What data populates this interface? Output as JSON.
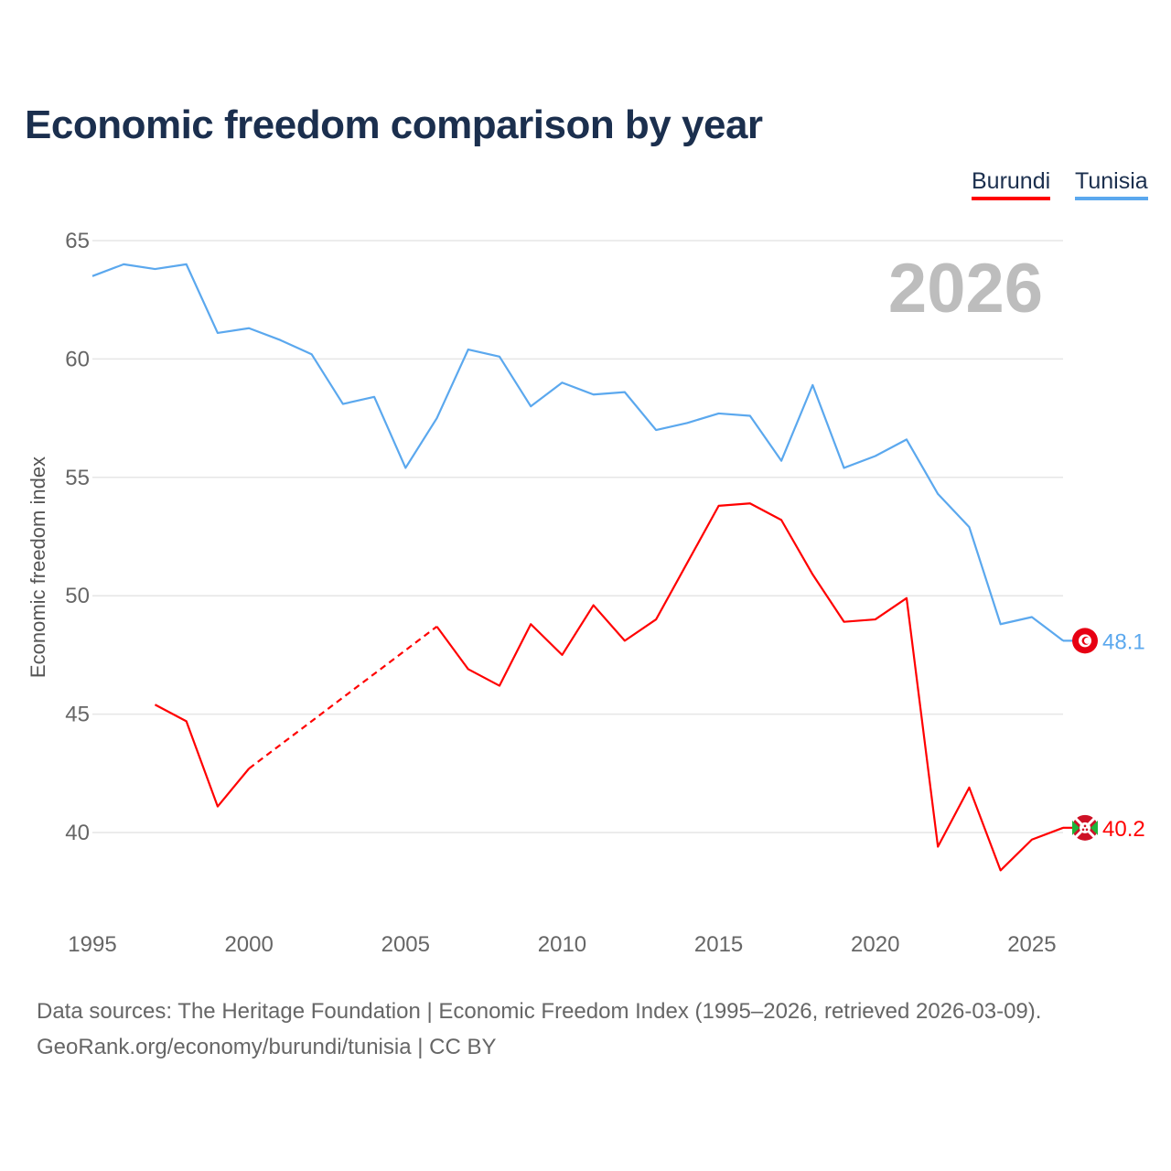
{
  "chart_data": {
    "type": "line",
    "title": "Economic freedom comparison by year",
    "ylabel": "Economic freedom index",
    "xlabel": "",
    "year_label": "2026",
    "ylim": [
      35,
      65
    ],
    "xlim": [
      1995,
      2026
    ],
    "yticks": [
      40,
      45,
      50,
      55,
      60,
      65
    ],
    "xticks": [
      1995,
      2000,
      2005,
      2010,
      2015,
      2020,
      2025
    ],
    "grid": true,
    "legend_position": "top-right",
    "x": [
      1995,
      1996,
      1997,
      1998,
      1999,
      2000,
      2001,
      2002,
      2003,
      2004,
      2005,
      2006,
      2007,
      2008,
      2009,
      2010,
      2011,
      2012,
      2013,
      2014,
      2015,
      2016,
      2017,
      2018,
      2019,
      2020,
      2021,
      2022,
      2023,
      2024,
      2025,
      2026
    ],
    "series": [
      {
        "name": "Burundi",
        "color": "#ff0000",
        "end_label": "40.2",
        "values": [
          null,
          null,
          45.4,
          44.7,
          41.1,
          42.7,
          null,
          null,
          null,
          null,
          null,
          48.7,
          46.9,
          46.2,
          48.8,
          47.5,
          49.6,
          48.1,
          49.0,
          51.4,
          53.8,
          53.9,
          53.2,
          50.9,
          48.9,
          49.0,
          49.9,
          39.4,
          41.9,
          38.4,
          39.7,
          40.2
        ]
      },
      {
        "name": "Tunisia",
        "color": "#5ba8ee",
        "end_label": "48.1",
        "values": [
          63.5,
          64.0,
          63.8,
          64.0,
          61.1,
          61.3,
          60.8,
          60.2,
          58.1,
          58.4,
          55.4,
          57.5,
          60.4,
          60.1,
          58.0,
          59.0,
          58.5,
          58.6,
          57.0,
          57.3,
          57.7,
          57.6,
          55.7,
          58.9,
          55.4,
          55.9,
          56.6,
          54.3,
          52.9,
          48.8,
          49.1,
          48.1
        ]
      }
    ]
  },
  "footer": {
    "line1": "Data sources: The Heritage Foundation | Economic Freedom Index (1995–2026, retrieved 2026-03-09).",
    "line2": "GeoRank.org/economy/burundi/tunisia | CC BY"
  }
}
